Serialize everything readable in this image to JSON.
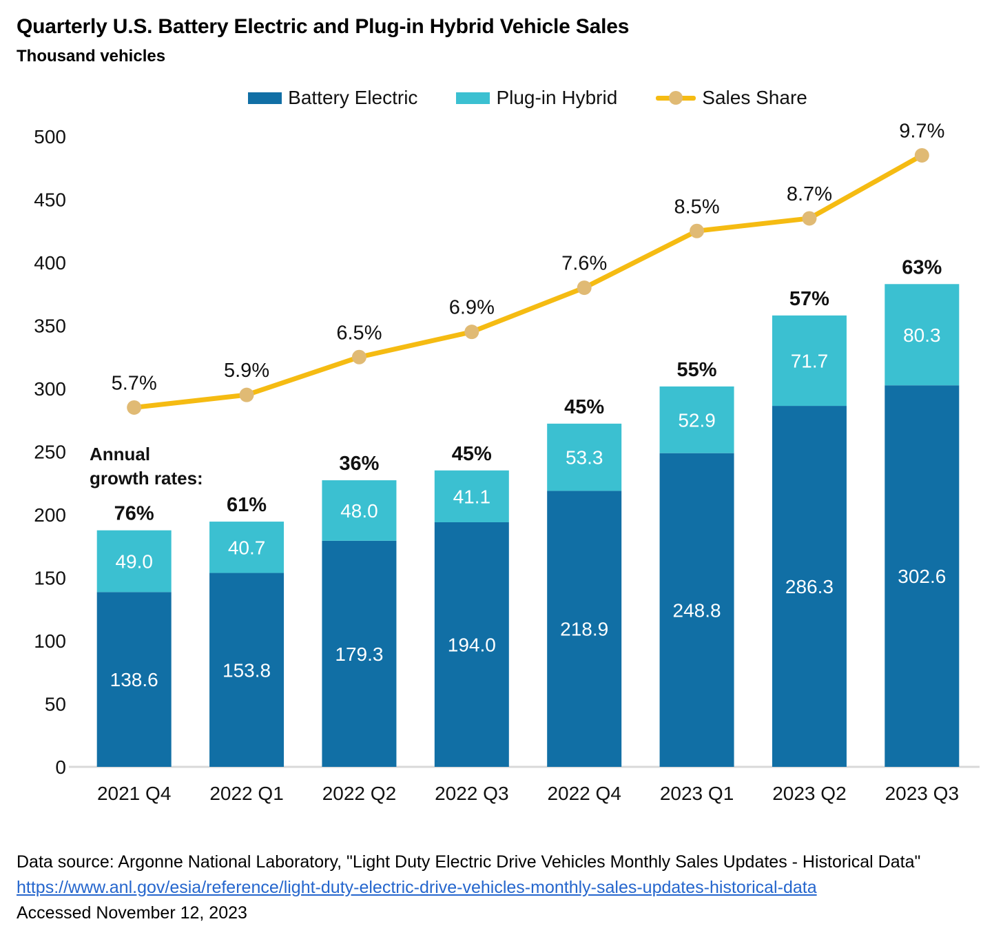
{
  "title": "Quarterly U.S. Battery Electric and Plug-in Hybrid Vehicle Sales",
  "subtitle": "Thousand vehicles",
  "legend": [
    {
      "label": "Battery Electric",
      "color": "#116FA5",
      "marker": "swatch"
    },
    {
      "label": "Plug-in Hybrid",
      "color": "#3BC0D1",
      "marker": "swatch"
    },
    {
      "label": "Sales Share",
      "color": "#F5BB12",
      "dot_color": "#E0BA74",
      "marker": "line-dot"
    }
  ],
  "annotation": {
    "lines": [
      "Annual",
      "growth rates:"
    ]
  },
  "footer": {
    "source": "Data source: Argonne National Laboratory, \"Light Duty Electric Drive Vehicles Monthly Sales Updates - Historical Data\"",
    "link_text": "https://www.anl.gov/esia/reference/light-duty-electric-drive-vehicles-monthly-sales-updates-historical-data",
    "accessed": "Accessed November 12, 2023"
  },
  "chart_data": {
    "type": "bar",
    "subtype": "stacked-bars-with-percent-line",
    "title": "Quarterly U.S. Battery Electric and Plug-in Hybrid Vehicle Sales",
    "ylabel": "Thousand vehicles",
    "xlabel": "",
    "grid": false,
    "legend_position": "top",
    "ylim": [
      0,
      500
    ],
    "yticks": [
      0,
      50,
      100,
      150,
      200,
      250,
      300,
      350,
      400,
      450,
      500
    ],
    "categories": [
      "2021 Q4",
      "2022 Q1",
      "2022 Q2",
      "2022 Q3",
      "2022 Q4",
      "2023 Q1",
      "2023 Q2",
      "2023 Q3"
    ],
    "series": [
      {
        "name": "Battery Electric",
        "color": "#116FA5",
        "label_color": "#FFFFFF",
        "values": [
          138.6,
          153.8,
          179.3,
          194.0,
          218.9,
          248.8,
          286.3,
          302.6
        ],
        "labels": [
          "138.6",
          "153.8",
          "179.3",
          "194.0",
          "218.9",
          "248.8",
          "286.3",
          "302.6"
        ]
      },
      {
        "name": "Plug-in Hybrid",
        "color": "#3BC0D1",
        "label_color": "#FFFFFF",
        "values": [
          49.0,
          40.7,
          48.0,
          41.1,
          53.3,
          52.9,
          71.7,
          80.3
        ],
        "labels": [
          "49.0",
          "40.7",
          "48.0",
          "41.1",
          "53.3",
          "52.9",
          "71.7",
          "80.3"
        ]
      }
    ],
    "line": {
      "name": "Sales Share",
      "color": "#F5BB12",
      "dot_color": "#E0BA74",
      "pct_axis_max": 10,
      "values_pct": [
        5.7,
        5.9,
        6.5,
        6.9,
        7.6,
        8.5,
        8.7,
        9.7
      ],
      "labels": [
        "5.7%",
        "5.9%",
        "6.5%",
        "6.9%",
        "7.6%",
        "8.5%",
        "8.7%",
        "9.7%"
      ]
    },
    "growth_labels": [
      "76%",
      "61%",
      "36%",
      "45%",
      "45%",
      "55%",
      "57%",
      "63%"
    ]
  }
}
